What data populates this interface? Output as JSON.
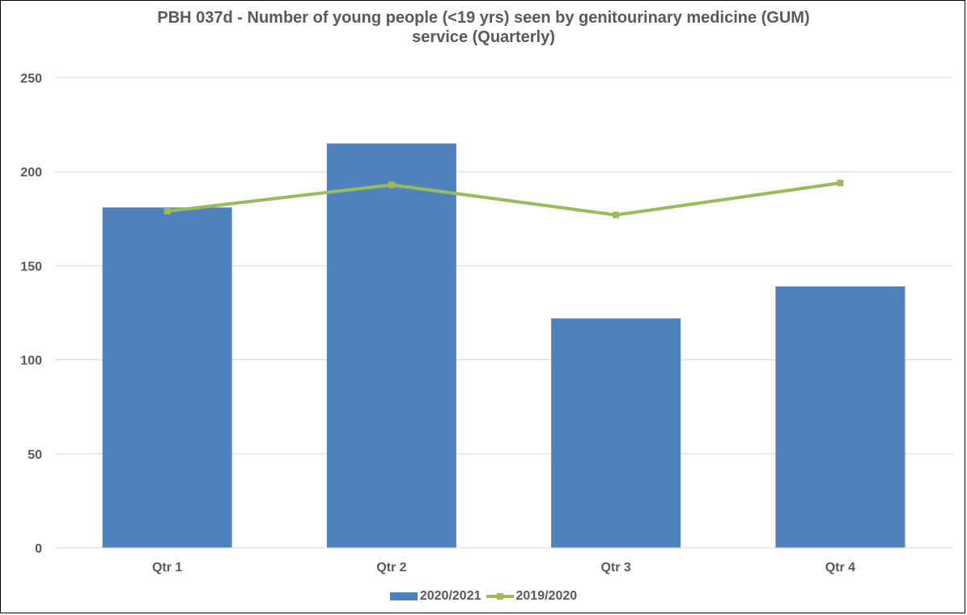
{
  "chart_data": {
    "type": "bar",
    "title_lines": [
      "PBH 037d - Number of young people (<19 yrs) seen by genitourinary medicine (GUM)",
      "service (Quarterly)"
    ],
    "categories": [
      "Qtr 1",
      "Qtr 2",
      "Qtr 3",
      "Qtr 4"
    ],
    "series": [
      {
        "name": "2020/2021",
        "type": "bar",
        "color": "#4F81BD",
        "values": [
          181,
          215,
          122,
          139
        ]
      },
      {
        "name": "2019/2020",
        "type": "line",
        "color": "#9BBB59",
        "values": [
          179,
          193,
          177,
          194
        ]
      }
    ],
    "xlabel": "",
    "ylabel": "",
    "ylim": [
      0,
      250
    ],
    "yticks": [
      0,
      50,
      100,
      150,
      200,
      250
    ],
    "grid": true,
    "legend_position": "bottom"
  }
}
